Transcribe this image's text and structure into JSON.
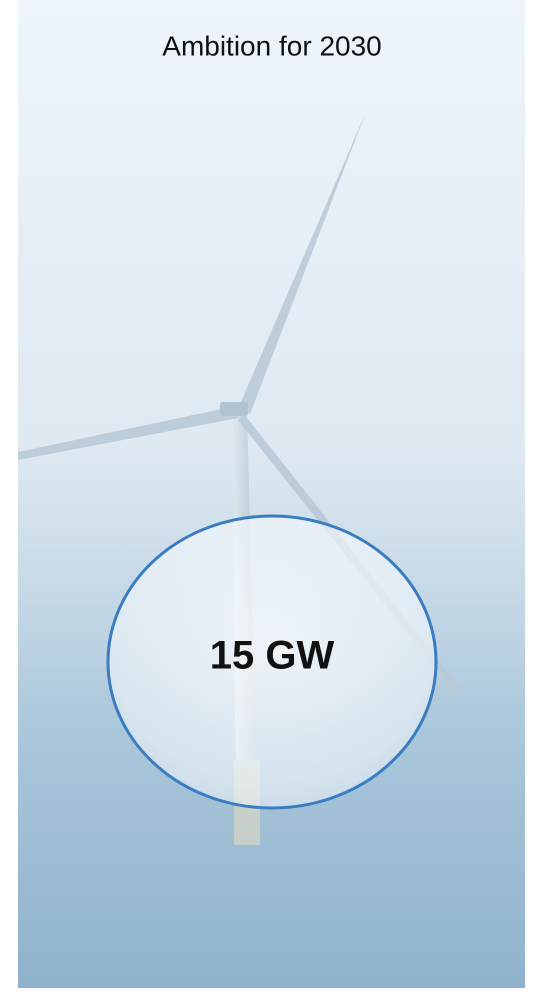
{
  "title": "Ambition for 2030",
  "highlight": "15 GW"
}
